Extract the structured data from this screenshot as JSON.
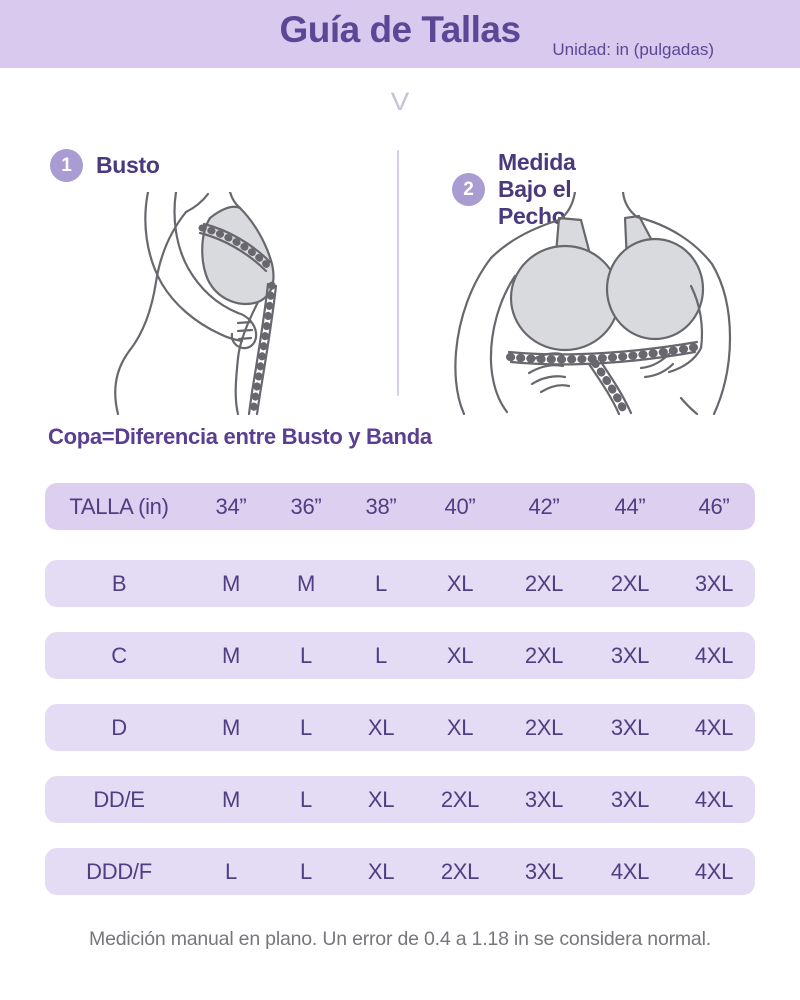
{
  "header": {
    "title": "Guía de Tallas",
    "unit_label": "Unidad: in (pulgadas)"
  },
  "icons": {
    "chevron_down": "V"
  },
  "steps": [
    {
      "number": "1",
      "label": "Busto"
    },
    {
      "number": "2",
      "label": "Medida Bajo el Pecho"
    }
  ],
  "cup_note": "Copa=Diferencia entre Busto y Banda",
  "size_table": {
    "header": [
      "TALLA (in)",
      "34”",
      "36”",
      "38”",
      "40”",
      "42”",
      "44”",
      "46”"
    ],
    "rows": [
      {
        "cup": "B",
        "sizes": [
          "M",
          "M",
          "L",
          "XL",
          "2XL",
          "2XL",
          "3XL"
        ]
      },
      {
        "cup": "C",
        "sizes": [
          "M",
          "L",
          "L",
          "XL",
          "2XL",
          "3XL",
          "4XL"
        ]
      },
      {
        "cup": "D",
        "sizes": [
          "M",
          "L",
          "XL",
          "XL",
          "2XL",
          "3XL",
          "4XL"
        ]
      },
      {
        "cup": "DD/E",
        "sizes": [
          "M",
          "L",
          "XL",
          "2XL",
          "3XL",
          "3XL",
          "4XL"
        ]
      },
      {
        "cup": "DDD/F",
        "sizes": [
          "L",
          "L",
          "XL",
          "2XL",
          "3XL",
          "4XL",
          "4XL"
        ]
      }
    ]
  },
  "footer": {
    "note": "Medición manual en plano. Un error de 0.4 a 1.18 in se considera normal."
  },
  "colors": {
    "banner_bg": "#d9c9ee",
    "title_text": "#5b4795",
    "row_bg": "#e4dbf4",
    "header_row_bg": "#dccfef",
    "table_text": "#4f3f82",
    "step_circle_bg": "#a89cd2",
    "divider": "#d7cdeb",
    "footer_text": "#77767c"
  }
}
